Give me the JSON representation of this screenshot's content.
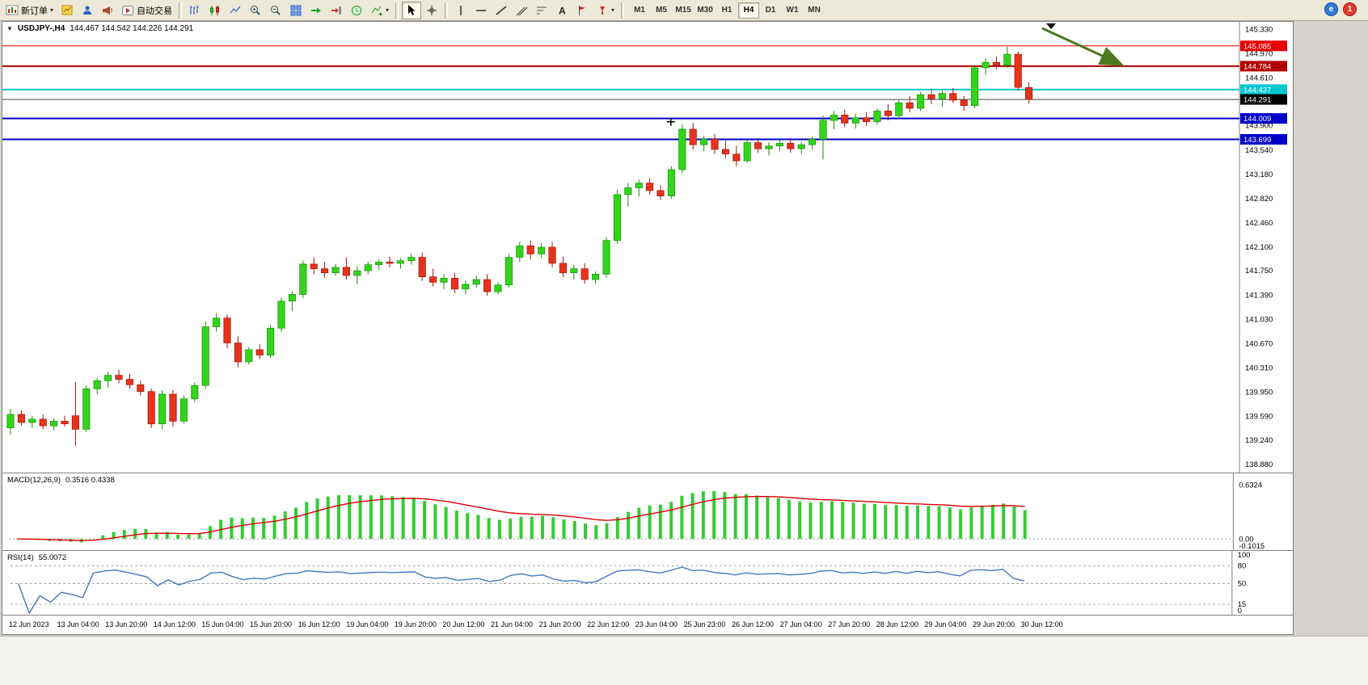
{
  "toolbar": {
    "new_order": "新订单",
    "autotrading": "自动交易",
    "timeframes": [
      "M1",
      "M5",
      "M15",
      "M30",
      "H1",
      "H4",
      "D1",
      "W1",
      "MN"
    ],
    "active_timeframe": "H4",
    "notification_badge": "1"
  },
  "chart_header": {
    "symbol_period": "USDJPY-,H4",
    "ohlc": "144.467 144.542 144.226 144.291"
  },
  "price_axis": {
    "labels": [
      "145.330",
      "144.970",
      "144.610",
      "144.250",
      "143.900",
      "143.540",
      "143.180",
      "142.820",
      "142.460",
      "142.100",
      "141.750",
      "141.390",
      "141.030",
      "140.670",
      "140.310",
      "139.950",
      "139.590",
      "139.240",
      "138.880"
    ]
  },
  "hlines": [
    {
      "price": 145.085,
      "label": "145.085",
      "color": "#e60000",
      "width": 1
    },
    {
      "price": 144.784,
      "label": "144.784",
      "color": "#b30000",
      "width": 2
    },
    {
      "price": 144.437,
      "label": "144.437",
      "color": "#00c8d2",
      "width": 2
    },
    {
      "price": 144.009,
      "label": "144.009",
      "color": "#0000c8",
      "width": 2
    },
    {
      "price": 143.699,
      "label": "143.699",
      "color": "#0000c8",
      "width": 2
    }
  ],
  "current_price": {
    "value": 144.291,
    "label": "144.291",
    "line_color": "#444444",
    "tag_color": "#000000"
  },
  "chart_data": {
    "type": "candlestick",
    "symbol": "USDJPY-",
    "timeframe": "H4",
    "y_range": [
      138.83,
      145.37
    ],
    "candles": [
      [
        139.42,
        139.7,
        139.32,
        139.62
      ],
      [
        139.62,
        139.68,
        139.45,
        139.5
      ],
      [
        139.5,
        139.6,
        139.42,
        139.55
      ],
      [
        139.55,
        139.62,
        139.4,
        139.45
      ],
      [
        139.45,
        139.56,
        139.38,
        139.52
      ],
      [
        139.52,
        139.6,
        139.44,
        139.48
      ],
      [
        139.6,
        140.1,
        139.15,
        139.4
      ],
      [
        139.4,
        140.05,
        139.36,
        140.0
      ],
      [
        140.0,
        140.16,
        139.92,
        140.12
      ],
      [
        140.12,
        140.25,
        140.02,
        140.2
      ],
      [
        140.2,
        140.28,
        140.08,
        140.14
      ],
      [
        140.14,
        140.22,
        140.0,
        140.06
      ],
      [
        140.06,
        140.12,
        139.9,
        139.96
      ],
      [
        139.96,
        140.0,
        139.42,
        139.48
      ],
      [
        139.48,
        139.98,
        139.4,
        139.92
      ],
      [
        139.92,
        139.98,
        139.44,
        139.52
      ],
      [
        139.52,
        139.9,
        139.48,
        139.85
      ],
      [
        139.85,
        140.1,
        139.8,
        140.05
      ],
      [
        140.05,
        141.0,
        140.0,
        140.92
      ],
      [
        140.92,
        141.12,
        140.85,
        141.05
      ],
      [
        141.05,
        141.1,
        140.6,
        140.68
      ],
      [
        140.68,
        140.78,
        140.32,
        140.4
      ],
      [
        140.4,
        140.62,
        140.36,
        140.58
      ],
      [
        140.58,
        140.66,
        140.44,
        140.5
      ],
      [
        140.5,
        140.95,
        140.46,
        140.9
      ],
      [
        140.9,
        141.35,
        140.85,
        141.3
      ],
      [
        141.3,
        141.45,
        141.15,
        141.4
      ],
      [
        141.4,
        141.9,
        141.35,
        141.85
      ],
      [
        141.85,
        141.95,
        141.7,
        141.78
      ],
      [
        141.78,
        141.88,
        141.65,
        141.72
      ],
      [
        141.72,
        141.85,
        141.68,
        141.8
      ],
      [
        141.8,
        141.95,
        141.62,
        141.68
      ],
      [
        141.68,
        141.82,
        141.55,
        141.75
      ],
      [
        141.75,
        141.88,
        141.7,
        141.84
      ],
      [
        141.84,
        141.92,
        141.76,
        141.88
      ],
      [
        141.88,
        141.96,
        141.8,
        141.86
      ],
      [
        141.86,
        141.94,
        141.78,
        141.9
      ],
      [
        141.9,
        142.0,
        141.84,
        141.95
      ],
      [
        141.95,
        142.02,
        141.6,
        141.66
      ],
      [
        141.66,
        141.78,
        141.52,
        141.58
      ],
      [
        141.58,
        141.7,
        141.48,
        141.64
      ],
      [
        141.64,
        141.72,
        141.42,
        141.48
      ],
      [
        141.48,
        141.6,
        141.4,
        141.55
      ],
      [
        141.55,
        141.68,
        141.5,
        141.62
      ],
      [
        141.62,
        141.7,
        141.38,
        141.44
      ],
      [
        141.44,
        141.58,
        141.4,
        141.54
      ],
      [
        141.54,
        142.0,
        141.5,
        141.95
      ],
      [
        141.95,
        142.18,
        141.88,
        142.12
      ],
      [
        142.12,
        142.2,
        141.92,
        142.0
      ],
      [
        142.0,
        142.16,
        141.94,
        142.1
      ],
      [
        142.1,
        142.18,
        141.8,
        141.86
      ],
      [
        141.86,
        141.96,
        141.66,
        141.72
      ],
      [
        141.72,
        141.84,
        141.62,
        141.78
      ],
      [
        141.78,
        141.86,
        141.56,
        141.62
      ],
      [
        141.62,
        141.74,
        141.55,
        141.7
      ],
      [
        141.7,
        142.25,
        141.65,
        142.2
      ],
      [
        142.2,
        142.95,
        142.15,
        142.88
      ],
      [
        142.88,
        143.05,
        142.7,
        142.98
      ],
      [
        142.98,
        143.1,
        142.85,
        143.05
      ],
      [
        143.05,
        143.12,
        142.88,
        142.94
      ],
      [
        142.94,
        143.02,
        142.8,
        142.86
      ],
      [
        142.86,
        143.3,
        142.82,
        143.25
      ],
      [
        143.25,
        143.92,
        143.2,
        143.85
      ],
      [
        143.85,
        143.94,
        143.55,
        143.62
      ],
      [
        143.62,
        143.75,
        143.52,
        143.7
      ],
      [
        143.7,
        143.78,
        143.48,
        143.55
      ],
      [
        143.55,
        143.68,
        143.42,
        143.48
      ],
      [
        143.48,
        143.6,
        143.3,
        143.38
      ],
      [
        143.38,
        143.7,
        143.35,
        143.65
      ],
      [
        143.65,
        143.72,
        143.5,
        143.56
      ],
      [
        143.56,
        143.66,
        143.46,
        143.6
      ],
      [
        143.6,
        143.7,
        143.52,
        143.64
      ],
      [
        143.64,
        143.72,
        143.5,
        143.56
      ],
      [
        143.56,
        143.66,
        143.48,
        143.62
      ],
      [
        143.62,
        143.74,
        143.55,
        143.7
      ],
      [
        143.7,
        144.05,
        143.4,
        143.98
      ],
      [
        143.98,
        144.12,
        143.85,
        144.06
      ],
      [
        144.06,
        144.14,
        143.88,
        143.94
      ],
      [
        143.94,
        144.08,
        143.86,
        144.02
      ],
      [
        144.02,
        144.1,
        143.9,
        143.96
      ],
      [
        143.96,
        144.16,
        143.92,
        144.12
      ],
      [
        144.12,
        144.22,
        143.98,
        144.05
      ],
      [
        144.05,
        144.28,
        144.0,
        144.24
      ],
      [
        144.24,
        144.34,
        144.1,
        144.16
      ],
      [
        144.16,
        144.4,
        144.12,
        144.36
      ],
      [
        144.36,
        144.44,
        144.22,
        144.3
      ],
      [
        144.3,
        144.42,
        144.18,
        144.38
      ],
      [
        144.38,
        144.46,
        144.24,
        144.28
      ],
      [
        144.28,
        144.34,
        144.12,
        144.2
      ],
      [
        144.2,
        144.8,
        144.16,
        144.76
      ],
      [
        144.76,
        144.9,
        144.66,
        144.84
      ],
      [
        144.84,
        144.92,
        144.74,
        144.8
      ],
      [
        144.8,
        145.07,
        144.76,
        144.96
      ],
      [
        144.96,
        145.0,
        144.42,
        144.47
      ],
      [
        144.467,
        144.542,
        144.226,
        144.291
      ]
    ]
  },
  "colors": {
    "up": "#33d41c",
    "up_border": "#169106",
    "down": "#e8331c",
    "down_border": "#9e1408",
    "macd_bar": "#33cc33",
    "macd_signal": "#dd0000",
    "rsi_line": "#4079c0"
  },
  "macd_panel": {
    "title": "MACD(12,26,9)",
    "values": "0.3516 0.4338",
    "axis": [
      "0.6324",
      "0.00",
      "-0.1015"
    ],
    "max": 0.6324,
    "min": -0.1015
  },
  "rsi_panel": {
    "title": "RSI(14)",
    "value": "55.0072",
    "axis": [
      "100",
      "80",
      "50",
      "15",
      "0"
    ],
    "levels": [
      80,
      50,
      15
    ]
  },
  "time_axis": {
    "labels": [
      "12 Jun 2023",
      "13 Jun 04:00",
      "13 Jun 20:00",
      "14 Jun 12:00",
      "15 Jun 04:00",
      "15 Jun 20:00",
      "16 Jun 12:00",
      "19 Jun 04:00",
      "19 Jun 20:00",
      "20 Jun 12:00",
      "21 Jun 04:00",
      "21 Jun 20:00",
      "22 Jun 12:00",
      "23 Jun 04:00",
      "25 Jun 23:00",
      "26 Jun 12:00",
      "27 Jun 04:00",
      "27 Jun 20:00",
      "28 Jun 12:00",
      "29 Jun 04:00",
      "29 Jun 20:00",
      "30 Jun 12:00"
    ]
  },
  "annotations": {
    "trend_arrow": {
      "color": "#4e7a1d"
    },
    "time_marker_color": "#000000",
    "cross_marker": {
      "price": 143.96,
      "candle_index": 62
    }
  }
}
